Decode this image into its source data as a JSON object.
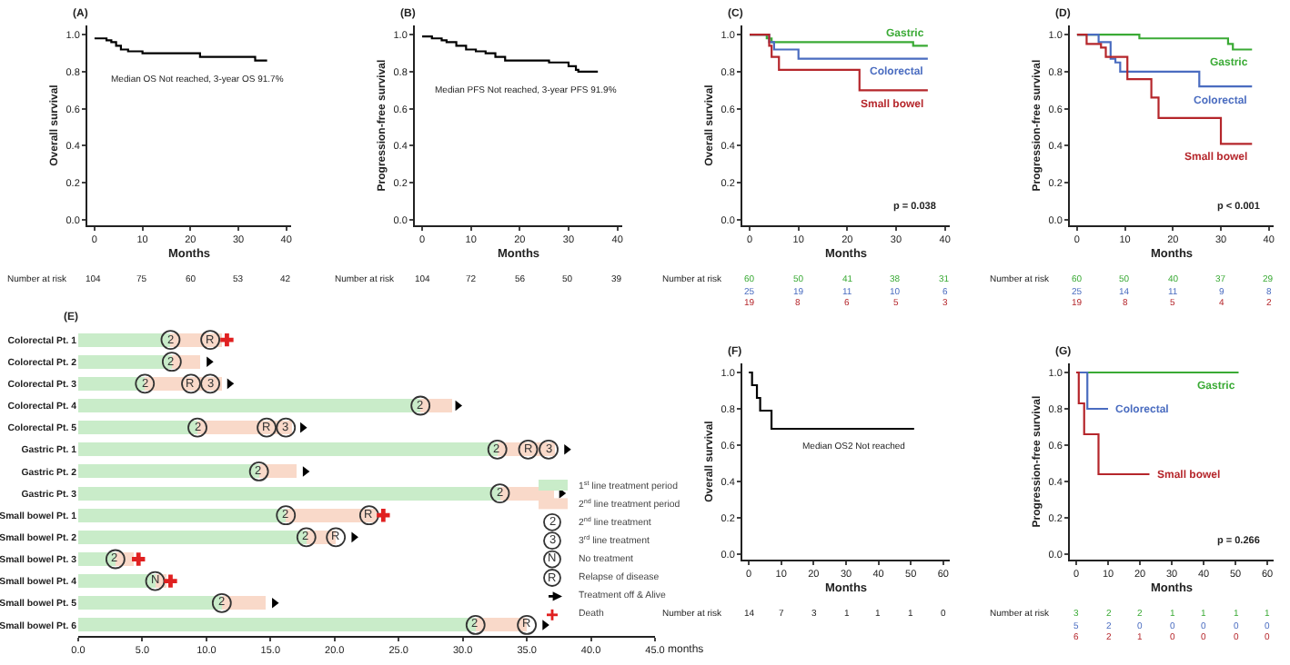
{
  "chart_data": [
    {
      "type": "step",
      "title": "(A)",
      "xlabel": "Months",
      "ylabel": "Overall survival",
      "xlim": [
        -1.5,
        41
      ],
      "ylim": [
        -0.03,
        1.05
      ],
      "xticks": [
        0,
        10,
        20,
        30,
        40
      ],
      "yticks": [
        {
          "value": 0,
          "label": "0.0"
        },
        {
          "value": 0.2,
          "label": "0.2"
        },
        {
          "value": 0.4,
          "label": "0.4"
        },
        {
          "value": 0.6,
          "label": "0.6"
        },
        {
          "value": 0.8,
          "label": "0.8"
        },
        {
          "value": 1,
          "label": "1.0"
        }
      ],
      "series": [
        {
          "color": "#000000",
          "x": [
            0,
            2.5,
            3.5,
            4.5,
            5.5,
            7,
            10,
            22,
            33.5,
            36
          ],
          "values": [
            0.98,
            0.97,
            0.96,
            0.94,
            0.92,
            0.91,
            0.9,
            0.88,
            0.86,
            0.86
          ]
        }
      ],
      "annotations": [
        "Median OS Not reached, 3-year OS 91.7%",
        "Number at risk",
        "104 75 60 53 42"
      ]
    },
    {
      "type": "step",
      "title": "(B)",
      "xlabel": "Months",
      "ylabel": "Progression-free survival",
      "xlim": [
        -1.5,
        41
      ],
      "ylim": [
        -0.03,
        1.05
      ],
      "xticks": [
        0,
        10,
        20,
        30,
        40
      ],
      "yticks": [
        {
          "value": 0,
          "label": "0.0"
        },
        {
          "value": 0.2,
          "label": "0.2"
        },
        {
          "value": 0.4,
          "label": "0.4"
        },
        {
          "value": 0.6,
          "label": "0.6"
        },
        {
          "value": 0.8,
          "label": "0.8"
        },
        {
          "value": 1,
          "label": "1.0"
        }
      ],
      "series": [
        {
          "color": "#000000",
          "x": [
            0,
            2,
            4,
            5,
            7,
            9,
            11,
            13,
            15,
            17,
            26,
            30,
            31.5,
            32,
            36
          ],
          "values": [
            0.99,
            0.98,
            0.97,
            0.96,
            0.94,
            0.92,
            0.91,
            0.9,
            0.88,
            0.86,
            0.85,
            0.83,
            0.81,
            0.8,
            0.8
          ]
        }
      ],
      "annotations": [
        "Median PFS Not reached, 3-year PFS 91.9%",
        "Number at risk",
        "104 72 56 50 39"
      ]
    },
    {
      "type": "step",
      "title": "(C)",
      "xlabel": "Months",
      "ylabel": "Overall survival",
      "xlim": [
        -1.5,
        41
      ],
      "ylim": [
        -0.03,
        1.05
      ],
      "xticks": [
        0,
        10,
        20,
        30,
        40
      ],
      "yticks": [
        {
          "value": 0,
          "label": "0.0"
        },
        {
          "value": 0.2,
          "label": "0.2"
        },
        {
          "value": 0.4,
          "label": "0.4"
        },
        {
          "value": 0.6,
          "label": "0.6"
        },
        {
          "value": 0.8,
          "label": "0.8"
        },
        {
          "value": 1,
          "label": "1.0"
        }
      ],
      "series": [
        {
          "name": "Gastric",
          "color": "#3aaa35",
          "x": [
            0,
            3.5,
            4.5,
            33.5,
            36.5
          ],
          "values": [
            1,
            0.98,
            0.96,
            0.94,
            0.94
          ]
        },
        {
          "name": "Colorectal",
          "color": "#4a6cc0",
          "x": [
            0,
            4,
            5,
            10,
            36.5
          ],
          "values": [
            1,
            0.96,
            0.92,
            0.87,
            0.87
          ]
        },
        {
          "name": "Small bowel",
          "color": "#b5262b",
          "x": [
            0,
            4,
            4.5,
            6,
            22.5,
            36.5
          ],
          "values": [
            1,
            0.94,
            0.88,
            0.81,
            0.7,
            0.7
          ]
        }
      ],
      "annotations": [
        "p = 0.038",
        "Number at risk",
        "60 50 41 38 31",
        "25 19 11 10 6",
        "19 8 6 5 3"
      ]
    },
    {
      "type": "step",
      "title": "(D)",
      "xlabel": "Months",
      "ylabel": "Progression-free survival",
      "xlim": [
        -1.5,
        41
      ],
      "ylim": [
        -0.03,
        1.05
      ],
      "xticks": [
        0,
        10,
        20,
        30,
        40
      ],
      "yticks": [
        {
          "value": 0,
          "label": "0.0"
        },
        {
          "value": 0.2,
          "label": "0.2"
        },
        {
          "value": 0.4,
          "label": "0.4"
        },
        {
          "value": 0.6,
          "label": "0.6"
        },
        {
          "value": 0.8,
          "label": "0.8"
        },
        {
          "value": 1,
          "label": "1.0"
        }
      ],
      "series": [
        {
          "name": "Gastric",
          "color": "#3aaa35",
          "x": [
            0,
            13,
            31.5,
            32.5,
            36.5
          ],
          "values": [
            1,
            0.98,
            0.95,
            0.92,
            0.92
          ]
        },
        {
          "name": "Colorectal",
          "color": "#4a6cc0",
          "x": [
            0,
            4.5,
            7,
            8,
            9,
            25.5,
            36.5
          ],
          "values": [
            1,
            0.96,
            0.87,
            0.85,
            0.8,
            0.72,
            0.72
          ]
        },
        {
          "name": "Small bowel",
          "color": "#b5262b",
          "x": [
            0,
            2,
            5,
            6,
            10.5,
            15.5,
            17,
            30,
            36.5
          ],
          "values": [
            1,
            0.95,
            0.93,
            0.88,
            0.76,
            0.66,
            0.55,
            0.41,
            0.41
          ]
        }
      ],
      "annotations": [
        "p < 0.001",
        "Number at risk",
        "60 50 40 37 29",
        "25 14 11 9 8",
        "19 8 5 4 2"
      ]
    },
    {
      "type": "bar",
      "title": "(E)",
      "orientation": "horizontal",
      "stacked": true,
      "legend": "right",
      "xlabel": "months",
      "xlim": [
        0,
        45
      ],
      "xticks": [
        {
          "value": 0,
          "label": "0.0"
        },
        {
          "value": 5,
          "label": "5.0"
        },
        {
          "value": 10,
          "label": "10.0"
        },
        {
          "value": 15,
          "label": "15.0"
        },
        {
          "value": 20,
          "label": "20.0"
        },
        {
          "value": 25,
          "label": "25.0"
        },
        {
          "value": 30,
          "label": "30.0"
        },
        {
          "value": 35,
          "label": "35.0"
        },
        {
          "value": 40,
          "label": "40.0"
        },
        {
          "value": 45,
          "label": "45.0"
        }
      ],
      "categories": [
        "Colorectal Pt. 1",
        "Colorectal Pt. 2",
        "Colorectal Pt. 3",
        "Colorectal Pt. 4",
        "Colorectal Pt. 5",
        "Gastric Pt. 1",
        "Gastric Pt. 2",
        "Gastric Pt. 3",
        "Small bowel Pt. 1",
        "Small bowel Pt. 2",
        "Small bowel Pt. 3",
        "Small bowel Pt. 4",
        "Small bowel Pt. 5",
        "Small bowel Pt. 6"
      ],
      "series": [
        {
          "name": "1$^{st}$ line treatment period",
          "color": "#c9ecc9",
          "values": [
            7.2,
            7.3,
            5.2,
            26.7,
            9.3,
            32.7,
            14.1,
            32.9,
            16.2,
            17.8,
            2.9,
            6.0,
            11.2,
            31.0
          ]
        },
        {
          "name": "2$^{nd}$ line treatment period",
          "color": "#f9d9c9",
          "values": [
            4.0,
            2.2,
            6.0,
            2.5,
            7.4,
            4.5,
            2.9,
            4.2,
            7.1,
            2.3,
            1.4,
            0.9,
            3.4,
            4.0
          ]
        },
        {
          "name": "2$^{nd}$ line treatment",
          "type": "scatter",
          "marker": "circle",
          "color": "#333333",
          "values": [
            7.2,
            7.3,
            5.2,
            26.7,
            9.3,
            32.7,
            14.1,
            32.9,
            16.2,
            17.8,
            2.9,
            null,
            11.2,
            31.0
          ]
        },
        {
          "name": "3$^{rd}$ line treatment",
          "type": "scatter",
          "marker": "circle",
          "color": "#333333",
          "values": [
            null,
            null,
            10.3,
            null,
            16.2,
            36.7,
            null,
            null,
            null,
            null,
            null,
            null,
            null,
            null
          ]
        },
        {
          "name": "No treatment",
          "type": "scatter",
          "marker": "circle",
          "color": "#333333",
          "values": [
            null,
            null,
            null,
            null,
            null,
            null,
            null,
            null,
            null,
            null,
            null,
            6.0,
            null,
            null
          ]
        },
        {
          "name": "Relapse of disease",
          "type": "scatter",
          "marker": "circle",
          "color": "#333333",
          "values": [
            10.3,
            null,
            8.8,
            null,
            14.7,
            35.1,
            null,
            null,
            22.7,
            20.1,
            null,
            null,
            null,
            35.0
          ]
        },
        {
          "name": "Treatment off & Alive",
          "type": "scatter",
          "marker": "triangle",
          "color": "#000000",
          "values": [
            null,
            10.2,
            11.8,
            29.6,
            17.5,
            38.1,
            17.7,
            37.7,
            null,
            21.5,
            null,
            null,
            15.3,
            36.4
          ]
        },
        {
          "name": "Death",
          "type": "scatter",
          "marker": "cross",
          "color": "#e02020",
          "values": [
            11.6,
            null,
            null,
            null,
            null,
            null,
            null,
            null,
            23.8,
            null,
            4.7,
            7.2,
            null,
            null
          ]
        }
      ],
      "annotations": [
        {
          "text": "2",
          "x": 7.2,
          "y": "Colorectal Pt. 1"
        },
        {
          "text": "2",
          "x": 7.3,
          "y": "Colorectal Pt. 2"
        },
        {
          "text": "2",
          "x": 5.2,
          "y": "Colorectal Pt. 3"
        },
        {
          "text": "2",
          "x": 26.7,
          "y": "Colorectal Pt. 4"
        },
        {
          "text": "2",
          "x": 9.3,
          "y": "Colorectal Pt. 5"
        },
        {
          "text": "2",
          "x": 32.7,
          "y": "Gastric Pt. 1"
        },
        {
          "text": "2",
          "x": 14.1,
          "y": "Gastric Pt. 2"
        },
        {
          "text": "2",
          "x": 32.9,
          "y": "Gastric Pt. 3"
        },
        {
          "text": "2",
          "x": 16.2,
          "y": "Small bowel Pt. 1"
        },
        {
          "text": "2",
          "x": 17.8,
          "y": "Small bowel Pt. 2"
        },
        {
          "text": "2",
          "x": 2.9,
          "y": "Small bowel Pt. 3"
        },
        {
          "text": "2",
          "x": 11.2,
          "y": "Small bowel Pt. 5"
        },
        {
          "text": "2",
          "x": 31.0,
          "y": "Small bowel Pt. 6"
        },
        {
          "text": "3",
          "x": 10.3,
          "y": "Colorectal Pt. 3"
        },
        {
          "text": "3",
          "x": 16.2,
          "y": "Colorectal Pt. 5"
        },
        {
          "text": "3",
          "x": 36.7,
          "y": "Gastric Pt. 1"
        },
        {
          "text": "N",
          "x": 6.0,
          "y": "Small bowel Pt. 4"
        },
        {
          "text": "R",
          "x": 10.3,
          "y": "Colorectal Pt. 1"
        },
        {
          "text": "R",
          "x": 8.8,
          "y": "Colorectal Pt. 3"
        },
        {
          "text": "R",
          "x": 14.7,
          "y": "Colorectal Pt. 5"
        },
        {
          "text": "R",
          "x": 35.1,
          "y": "Gastric Pt. 1"
        },
        {
          "text": "R",
          "x": 22.7,
          "y": "Small bowel Pt. 1"
        },
        {
          "text": "R",
          "x": 20.1,
          "y": "Small bowel Pt. 2"
        },
        {
          "text": "R",
          "x": 35.0,
          "y": "Small bowel Pt. 6"
        }
      ]
    },
    {
      "type": "step",
      "title": "(F)",
      "xlabel": "Months",
      "ylabel": "Overall survival",
      "xlim": [
        -2,
        62
      ],
      "ylim": [
        -0.03,
        1.05
      ],
      "xticks": [
        0,
        10,
        20,
        30,
        40,
        50,
        60
      ],
      "yticks": [
        {
          "value": 0,
          "label": "0.0"
        },
        {
          "value": 0.2,
          "label": "0.2"
        },
        {
          "value": 0.4,
          "label": "0.4"
        },
        {
          "value": 0.6,
          "label": "0.6"
        },
        {
          "value": 0.8,
          "label": "0.8"
        },
        {
          "value": 1,
          "label": "1.0"
        }
      ],
      "series": [
        {
          "color": "#000000",
          "x": [
            0,
            1,
            2.5,
            3.5,
            7,
            51
          ],
          "values": [
            1,
            0.93,
            0.86,
            0.79,
            0.69,
            0.69
          ]
        }
      ],
      "annotations": [
        "Median OS2 Not reached",
        "Number at risk",
        "14 7 3 1 1 1 0"
      ]
    },
    {
      "type": "step",
      "title": "(G)",
      "xlabel": "Months",
      "ylabel": "Progression-free survival",
      "xlim": [
        -2,
        62
      ],
      "ylim": [
        -0.03,
        1.05
      ],
      "xticks": [
        0,
        10,
        20,
        30,
        40,
        50,
        60
      ],
      "yticks": [
        {
          "value": 0,
          "label": "0.0"
        },
        {
          "value": 0.2,
          "label": "0.2"
        },
        {
          "value": 0.4,
          "label": "0.4"
        },
        {
          "value": 0.6,
          "label": "0.6"
        },
        {
          "value": 0.8,
          "label": "0.8"
        },
        {
          "value": 1,
          "label": "1.0"
        }
      ],
      "series": [
        {
          "name": "Gastric",
          "color": "#3aaa35",
          "x": [
            0,
            51
          ],
          "values": [
            1,
            1
          ]
        },
        {
          "name": "Colorectal",
          "color": "#4a6cc0",
          "x": [
            0,
            3.5,
            10
          ],
          "values": [
            1,
            0.8,
            0.8
          ]
        },
        {
          "name": "Small bowel",
          "color": "#b5262b",
          "x": [
            0,
            0.8,
            2.5,
            7,
            23
          ],
          "values": [
            1,
            0.83,
            0.66,
            0.44,
            0.44
          ]
        }
      ],
      "annotations": [
        "p = 0.266",
        "Number at risk",
        "3 2 2 1 1 1 1",
        "5 2 0 0 0 0 0",
        "6 2 1 0 0 0 0"
      ]
    }
  ]
}
